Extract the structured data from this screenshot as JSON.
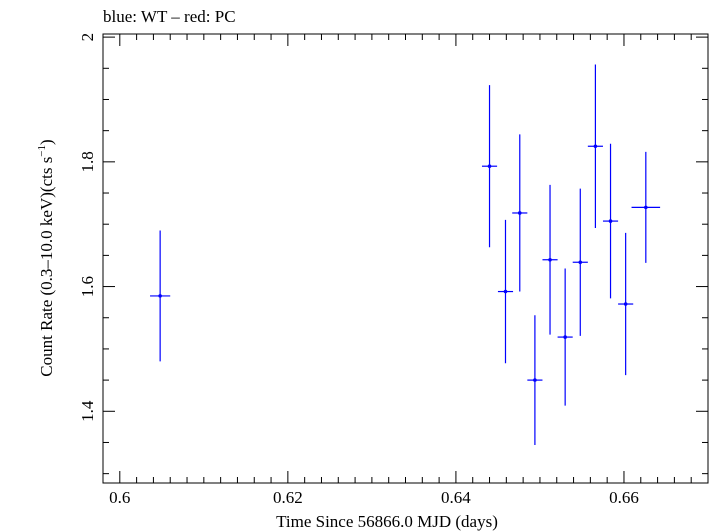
{
  "chart_data": {
    "type": "scatter",
    "title": "blue: WT – red: PC",
    "xlabel": "Time Since 56866.0 MJD (days)",
    "ylabel": "Count Rate (0.3–10.0 keV)(cts s",
    "ylabel_sup": "−1",
    "ylabel_close": ")",
    "xlim": [
      0.598,
      0.67
    ],
    "ylim": [
      1.285,
      2.005
    ],
    "x_ticks": [
      0.6,
      0.62,
      0.64,
      0.66
    ],
    "x_tick_labels": [
      "0.6",
      "0.62",
      "0.64",
      "0.66"
    ],
    "y_ticks": [
      1.4,
      1.6,
      1.8,
      2.0
    ],
    "y_tick_labels": [
      "1.4",
      "1.6",
      "1.8",
      "2"
    ],
    "x_minor_step": 0.002,
    "y_minor_step": 0.05,
    "grid": false,
    "series": [
      {
        "color": "#0000ff",
        "points": [
          {
            "x": 0.6048,
            "xerr": 0.0012,
            "y": 1.585,
            "yerr": 0.105
          },
          {
            "x": 0.644,
            "xerr": 0.0009,
            "y": 1.793,
            "yerr": 0.13
          },
          {
            "x": 0.6459,
            "xerr": 0.0009,
            "y": 1.592,
            "yerr": 0.115
          },
          {
            "x": 0.6476,
            "xerr": 0.0009,
            "y": 1.718,
            "yerr": 0.126
          },
          {
            "x": 0.6494,
            "xerr": 0.0009,
            "y": 1.45,
            "yerr": 0.104
          },
          {
            "x": 0.6512,
            "xerr": 0.0009,
            "y": 1.643,
            "yerr": 0.12
          },
          {
            "x": 0.653,
            "xerr": 0.0009,
            "y": 1.519,
            "yerr": 0.11
          },
          {
            "x": 0.6548,
            "xerr": 0.0009,
            "y": 1.639,
            "yerr": 0.118
          },
          {
            "x": 0.6566,
            "xerr": 0.0009,
            "y": 1.825,
            "yerr": 0.131
          },
          {
            "x": 0.6584,
            "xerr": 0.0009,
            "y": 1.705,
            "yerr": 0.124
          },
          {
            "x": 0.6602,
            "xerr": 0.0009,
            "y": 1.572,
            "yerr": 0.114
          },
          {
            "x": 0.6626,
            "xerr": 0.0017,
            "y": 1.727,
            "yerr": 0.089
          }
        ]
      }
    ]
  }
}
